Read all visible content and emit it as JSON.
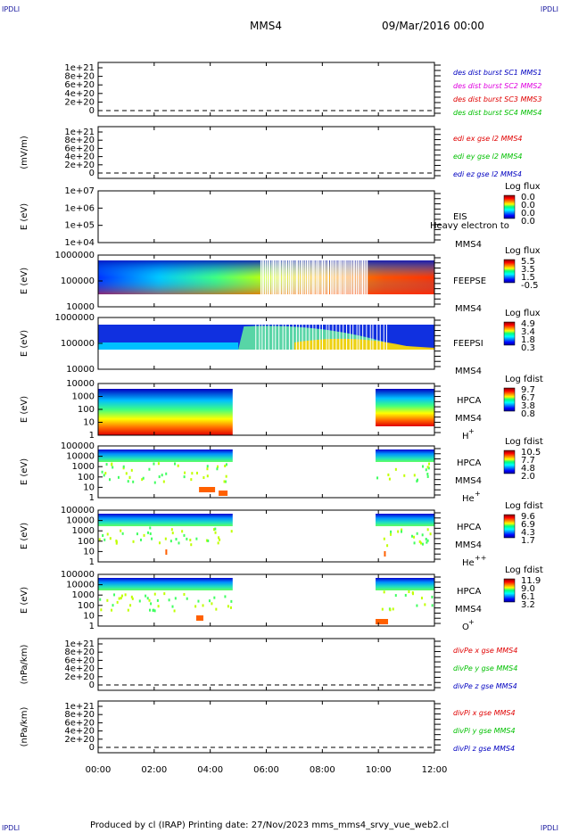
{
  "corners": {
    "tl": "IPDLI",
    "tr": "IPDLI",
    "bl": "IPDLI",
    "br": "IPDLI"
  },
  "header": {
    "spacecraft": "MMS4",
    "date": "09/Mar/2016 00:00"
  },
  "footer": {
    "text": "Produced by cl (IRAP)   Printing date: 27/Nov/2023   mms_mms4_srvy_vue_web2.cl"
  },
  "colors": {
    "red": "#e00000",
    "magenta": "#e000e0",
    "green": "#00c000",
    "blue": "#0000c0",
    "text": "#000000"
  },
  "chart_data": {
    "type": "multi-panel-timeseries",
    "x_ticks": [
      "00:00",
      "02:00",
      "04:00",
      "06:00",
      "08:00",
      "10:00",
      "12:00"
    ],
    "xlim_hours": [
      0,
      12
    ],
    "panels": [
      {
        "id": "p1",
        "type": "line",
        "ylabel": "",
        "yticks": [
          "1e+21",
          "8e+20",
          "6e+20",
          "4e+20",
          "2e+20",
          "0"
        ],
        "legend": [
          {
            "text": "des dist burst SC1 MMS1",
            "color": "#0000c0"
          },
          {
            "text": "des dist burst SC2 MMS2",
            "color": "#e000e0"
          },
          {
            "text": "des dist burst SC3 MMS3",
            "color": "#e00000"
          },
          {
            "text": "des dist burst SC4 MMS4",
            "color": "#00c000"
          }
        ]
      },
      {
        "id": "p2",
        "type": "line",
        "ylabel": "(mV/m)",
        "yticks": [
          "1e+21",
          "8e+20",
          "6e+20",
          "4e+20",
          "2e+20",
          "0"
        ],
        "legend": [
          {
            "text": "edi ex gse l2 MMS4",
            "color": "#e00000"
          },
          {
            "text": "edi ey gse l2 MMS4",
            "color": "#00c000"
          },
          {
            "text": "edi ez gse l2 MMS4",
            "color": "#0000c0"
          }
        ]
      },
      {
        "id": "p3",
        "type": "heatmap",
        "ylabel": "E (eV)",
        "yticks": [
          "1e+07",
          "1e+06",
          "1e+05",
          "1e+04"
        ],
        "side": [
          "EIS",
          "MMS4"
        ],
        "overlay": "Heavy electron to",
        "colorbar": {
          "title": "Log flux",
          "values": [
            "0.0",
            "0.0",
            "0.0",
            "0.0"
          ]
        }
      },
      {
        "id": "p4",
        "type": "heatmap",
        "ylabel": "E (eV)",
        "yticks": [
          "1000000",
          "100000",
          "10000"
        ],
        "side": [
          "FEEPSE",
          "MMS4"
        ],
        "colorbar": {
          "title": "Log flux",
          "values": [
            "5.5",
            "3.5",
            "1.5",
            "-0.5"
          ]
        }
      },
      {
        "id": "p5",
        "type": "heatmap",
        "ylabel": "E (eV)",
        "yticks": [
          "1000000",
          "100000",
          "10000"
        ],
        "side": [
          "FEEPSI",
          "MMS4"
        ],
        "colorbar": {
          "title": "Log flux",
          "values": [
            "4.9",
            "3.4",
            "1.8",
            "0.3"
          ]
        }
      },
      {
        "id": "p6",
        "type": "heatmap",
        "ylabel": "E (eV)",
        "yticks": [
          "10000",
          "1000",
          "100",
          "10",
          "1"
        ],
        "side": [
          "HPCA",
          "MMS4",
          "H+"
        ],
        "colorbar": {
          "title": "Log fdist",
          "values": [
            "9.7",
            "6.7",
            "3.8",
            "0.8"
          ]
        }
      },
      {
        "id": "p7",
        "type": "heatmap",
        "ylabel": "E (eV)",
        "yticks": [
          "100000",
          "10000",
          "1000",
          "100",
          "10",
          "1"
        ],
        "side": [
          "HPCA",
          "MMS4",
          "He+"
        ],
        "colorbar": {
          "title": "Log fdist",
          "values": [
            "10.5",
            "7.7",
            "4.8",
            "2.0"
          ]
        }
      },
      {
        "id": "p8",
        "type": "heatmap",
        "ylabel": "E (eV)",
        "yticks": [
          "100000",
          "10000",
          "1000",
          "100",
          "10",
          "1"
        ],
        "side": [
          "HPCA",
          "MMS4",
          "He++"
        ],
        "colorbar": {
          "title": "Log fdist",
          "values": [
            "9.6",
            "6.9",
            "4.3",
            "1.7"
          ]
        }
      },
      {
        "id": "p9",
        "type": "heatmap",
        "ylabel": "E (eV)",
        "yticks": [
          "100000",
          "10000",
          "1000",
          "100",
          "10",
          "1"
        ],
        "side": [
          "HPCA",
          "MMS4",
          "O+"
        ],
        "colorbar": {
          "title": "Log fdist",
          "values": [
            "11.9",
            "9.0",
            "6.1",
            "3.2"
          ]
        }
      },
      {
        "id": "p10",
        "type": "line",
        "ylabel": "(nPa/km)",
        "yticks": [
          "1e+21",
          "8e+20",
          "6e+20",
          "4e+20",
          "2e+20",
          "0"
        ],
        "legend": [
          {
            "text": "divPe x gse MMS4",
            "color": "#e00000"
          },
          {
            "text": "divPe y gse MMS4",
            "color": "#00c000"
          },
          {
            "text": "divPe z gse MMS4",
            "color": "#0000c0"
          }
        ]
      },
      {
        "id": "p11",
        "type": "line",
        "ylabel": "(nPa/km)",
        "yticks": [
          "1e+21",
          "8e+20",
          "6e+20",
          "4e+20",
          "2e+20",
          "0"
        ],
        "legend": [
          {
            "text": "divPi x gse MMS4",
            "color": "#e00000"
          },
          {
            "text": "divPi y gse MMS4",
            "color": "#00c000"
          },
          {
            "text": "divPi z gse MMS4",
            "color": "#0000c0"
          }
        ]
      }
    ]
  }
}
